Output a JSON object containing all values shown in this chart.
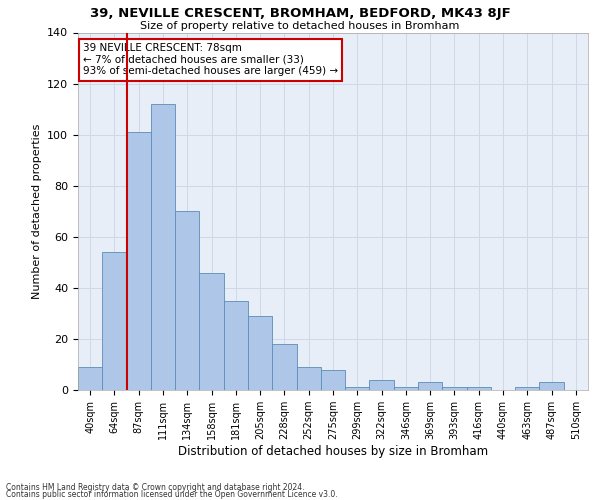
{
  "title1": "39, NEVILLE CRESCENT, BROMHAM, BEDFORD, MK43 8JF",
  "title2": "Size of property relative to detached houses in Bromham",
  "xlabel": "Distribution of detached houses by size in Bromham",
  "ylabel": "Number of detached properties",
  "bar_labels": [
    "40sqm",
    "64sqm",
    "87sqm",
    "111sqm",
    "134sqm",
    "158sqm",
    "181sqm",
    "205sqm",
    "228sqm",
    "252sqm",
    "275sqm",
    "299sqm",
    "322sqm",
    "346sqm",
    "369sqm",
    "393sqm",
    "416sqm",
    "440sqm",
    "463sqm",
    "487sqm",
    "510sqm"
  ],
  "bar_values": [
    9,
    54,
    101,
    112,
    70,
    46,
    35,
    29,
    18,
    9,
    8,
    1,
    4,
    1,
    3,
    1,
    1,
    0,
    1,
    3,
    0
  ],
  "bar_color": "#aec6e8",
  "bar_edge_color": "#5b8db8",
  "grid_color": "#d0d8e8",
  "bg_color": "#e8eef8",
  "vline_x": 1.5,
  "vline_color": "#cc0000",
  "annotation_text": "39 NEVILLE CRESCENT: 78sqm\n← 7% of detached houses are smaller (33)\n93% of semi-detached houses are larger (459) →",
  "annotation_box_color": "#ffffff",
  "annotation_border_color": "#cc0000",
  "ylim": [
    0,
    140
  ],
  "yticks": [
    0,
    20,
    40,
    60,
    80,
    100,
    120,
    140
  ],
  "footnote1": "Contains HM Land Registry data © Crown copyright and database right 2024.",
  "footnote2": "Contains public sector information licensed under the Open Government Licence v3.0."
}
